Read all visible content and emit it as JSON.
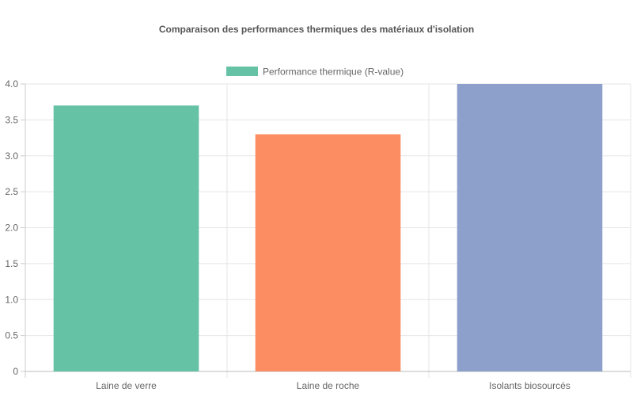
{
  "chart_data": {
    "type": "bar",
    "title": "Comparaison des performances thermiques des matériaux d'isolation",
    "xlabel": "",
    "ylabel": "",
    "categories": [
      "Laine de verre",
      "Laine de roche",
      "Isolants biosourcés"
    ],
    "series": [
      {
        "name": "Performance thermique (R-value)",
        "values": [
          3.7,
          3.3,
          4.0
        ],
        "colors": [
          "#66c2a5",
          "#fc8d62",
          "#8da0cb"
        ]
      }
    ],
    "ylim": [
      0,
      4.0
    ],
    "yticks": [
      "0",
      "0.5",
      "1.0",
      "1.5",
      "2.0",
      "2.5",
      "3.0",
      "3.5",
      "4.0"
    ],
    "grid": true,
    "legend_position": "top"
  }
}
